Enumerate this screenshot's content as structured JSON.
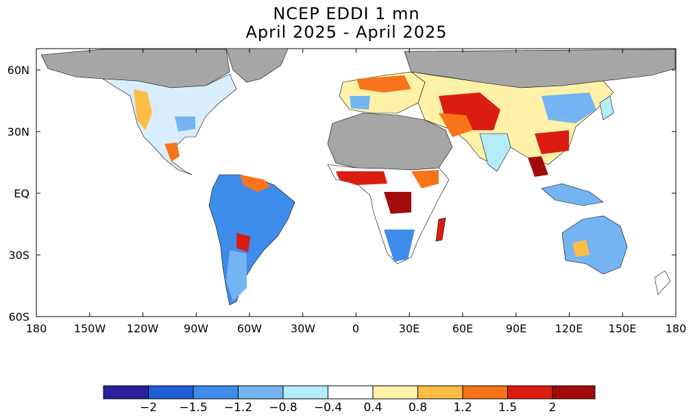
{
  "title_line1": "NCEP EDDI 1 mn",
  "title_line2": "April 2025 - April 2025",
  "x_ticks": [
    "180",
    "150W",
    "120W",
    "90W",
    "60W",
    "30W",
    "0",
    "30E",
    "60E",
    "90E",
    "120E",
    "150E",
    "180"
  ],
  "y_ticks": [
    "60N",
    "30N",
    "EQ",
    "30S",
    "60S"
  ],
  "colorbar": {
    "labels": [
      "-2",
      "-1.5",
      "-1.2",
      "-0.8",
      "-0.4",
      "0.4",
      "0.8",
      "1.2",
      "1.5",
      "2"
    ],
    "colors": [
      "#2a1f9c",
      "#1f5fd6",
      "#3e8cec",
      "#74b4f2",
      "#b4ecfa",
      "#ffffff",
      "#fff2a8",
      "#fdbd45",
      "#f8741a",
      "#da1d10",
      "#a30a0a"
    ]
  },
  "colors": {
    "nodata": "#a6a6a6",
    "land_outline": "#000000",
    "ocean": "#ffffff"
  }
}
